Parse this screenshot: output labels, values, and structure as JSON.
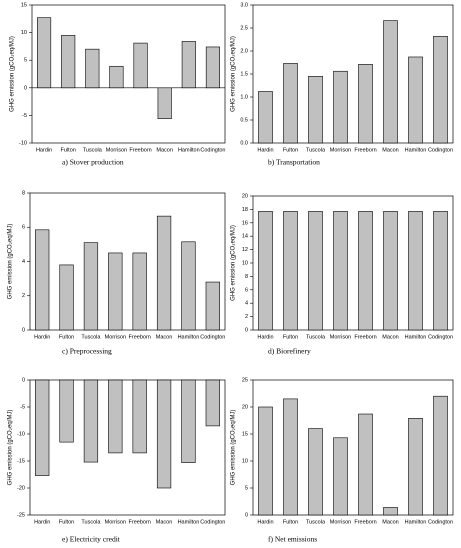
{
  "chart_data": [
    {
      "type": "bar",
      "caption": "a)   Stover production",
      "ylabel": "GHG emission (gCO₂eq/MJ)",
      "color": "#c0c0c0",
      "categories": [
        "Hardin",
        "Fulton",
        "Tuscola",
        "Morrison",
        "Freeborn",
        "Macon",
        "Hamilton",
        "Codington"
      ],
      "values": [
        12.7,
        9.5,
        7.0,
        3.9,
        8.1,
        -5.6,
        8.4,
        7.4
      ],
      "ylim": [
        -10,
        15
      ],
      "yticks": [
        -10,
        -5,
        0,
        5,
        10,
        15
      ]
    },
    {
      "type": "bar",
      "caption": "b) Transportation",
      "ylabel": "GHG emission (gCO₂eq/MJ)",
      "color": "#c0c0c0",
      "categories": [
        "Hardin",
        "Fulton",
        "Tuscola",
        "Morrison",
        "Freeborn",
        "Macon",
        "Hamilton",
        "Codington"
      ],
      "values": [
        1.12,
        1.73,
        1.45,
        1.56,
        1.71,
        2.66,
        1.87,
        2.32
      ],
      "ylim": [
        0,
        3
      ],
      "yticks": [
        {
          "value": 0,
          "label": "0.0"
        },
        {
          "value": 0.5,
          "label": "0.5"
        },
        {
          "value": 1,
          "label": "1.0"
        },
        {
          "value": 1.5,
          "label": "1.5"
        },
        {
          "value": 2,
          "label": "2.0"
        },
        {
          "value": 2.5,
          "label": "2.5"
        },
        {
          "value": 3,
          "label": "3.0"
        }
      ]
    },
    {
      "type": "bar",
      "caption": "c)      Preprocessing",
      "ylabel": "GHG emission (gCO₂eq/MJ)",
      "color": "#c0c0c0",
      "categories": [
        "Hardin",
        "Fulton",
        "Tuscola",
        "Morrison",
        "Freeborn",
        "Macon",
        "Hamilton",
        "Codington"
      ],
      "values": [
        5.85,
        3.8,
        5.1,
        4.5,
        4.5,
        6.65,
        5.15,
        2.8
      ],
      "ylim": [
        0,
        8
      ],
      "yticks": [
        0,
        2,
        4,
        6,
        8
      ]
    },
    {
      "type": "bar",
      "caption": "d) Biorefinery",
      "ylabel": "GHG emission (gCO₂eq/MJ)",
      "color": "#c0c0c0",
      "categories": [
        "Hardin",
        "Fulton",
        "Tuscola",
        "Morrison",
        "Freeborn",
        "Macon",
        "Hamilton",
        "Codington"
      ],
      "values": [
        17.7,
        17.7,
        17.7,
        17.7,
        17.7,
        17.7,
        17.7,
        17.7
      ],
      "ylim": [
        0,
        20
      ],
      "yticks": [
        0,
        2,
        4,
        6,
        8,
        10,
        12,
        14,
        16,
        18,
        20
      ]
    },
    {
      "type": "bar",
      "caption": "e) Electricity credit",
      "ylabel": "GHG emission (gCO₂eq/MJ)",
      "color": "#c0c0c0",
      "categories": [
        "Hardin",
        "Fulton",
        "Tuscola",
        "Morrison",
        "Freeborn",
        "Macon",
        "Hamilton",
        "Codington"
      ],
      "values": [
        -17.7,
        -11.5,
        -15.2,
        -13.5,
        -13.5,
        -20,
        -15.3,
        -8.5
      ],
      "ylim": [
        -25,
        0
      ],
      "yticks": [
        -25,
        -20,
        -15,
        -10,
        -5,
        0
      ]
    },
    {
      "type": "bar",
      "caption": "f) Net emissions",
      "ylabel": "GHG emission (gCO₂eq/MJ)",
      "color": "#c0c0c0",
      "categories": [
        "Hardin",
        "Fulton",
        "Tuscola",
        "Morrison",
        "Freeborn",
        "Macon",
        "Hamilton",
        "Codington"
      ],
      "values": [
        20,
        21.5,
        16,
        14.3,
        18.7,
        1.4,
        17.9,
        22
      ],
      "ylim": [
        0,
        25
      ],
      "yticks": [
        0,
        5,
        10,
        15,
        20,
        25
      ]
    }
  ]
}
